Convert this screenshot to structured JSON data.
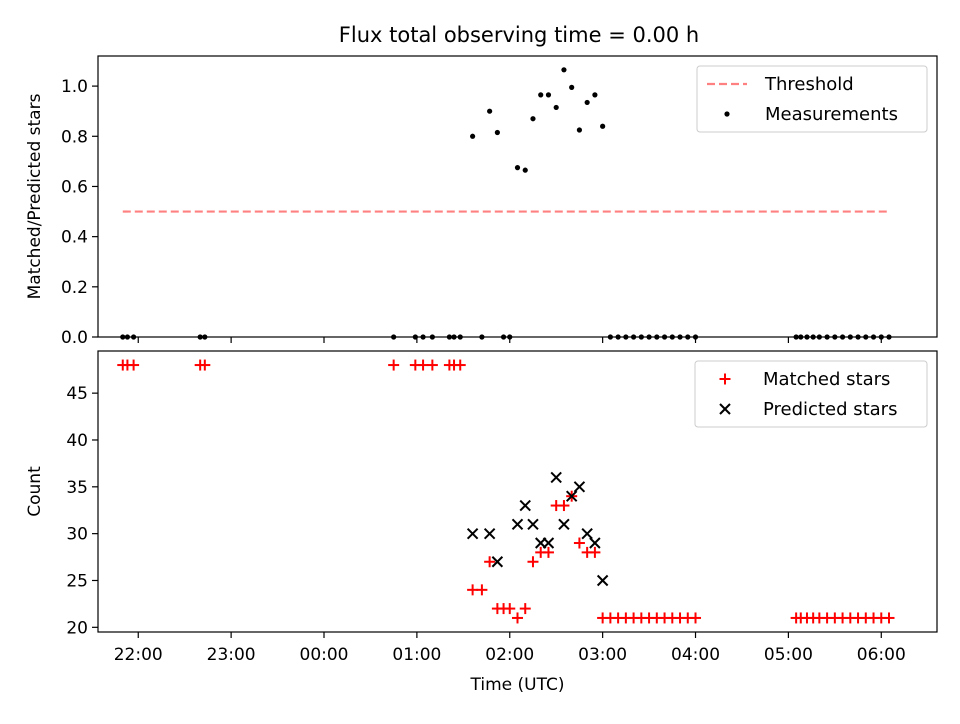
{
  "title": "Flux total observing time = 0.00 h",
  "chart_data": [
    {
      "type": "scatter",
      "ylabel": "Matched/Predicted stars",
      "xlabel": "",
      "xlim": [
        "21:34",
        "06:36"
      ],
      "ylim": [
        0,
        1.12
      ],
      "yticks": [
        0.0,
        0.2,
        0.4,
        0.6,
        0.8,
        1.0
      ],
      "ytick_labels": [
        "0.0",
        "0.2",
        "0.4",
        "0.6",
        "0.8",
        "1.0"
      ],
      "legend_position": "top-right",
      "series": [
        {
          "name": "Threshold",
          "kind": "line",
          "style": "dashed",
          "color": "#ff8080",
          "points": [
            [
              "21:50",
              0.5
            ],
            [
              "06:05",
              0.5
            ]
          ]
        },
        {
          "name": "Measurements",
          "kind": "scatter",
          "marker": "dot",
          "color": "#000000",
          "points": [
            [
              "21:50",
              0.0
            ],
            [
              "21:53",
              0.0
            ],
            [
              "21:57",
              0.0
            ],
            [
              "22:40",
              0.0
            ],
            [
              "22:43",
              0.0
            ],
            [
              "00:45",
              0.0
            ],
            [
              "00:59",
              0.0
            ],
            [
              "01:04",
              0.0
            ],
            [
              "01:10",
              0.0
            ],
            [
              "01:21",
              0.0
            ],
            [
              "01:24",
              0.0
            ],
            [
              "01:28",
              0.0
            ],
            [
              "01:42",
              0.0
            ],
            [
              "01:56",
              0.0
            ],
            [
              "02:00",
              0.0
            ],
            [
              "01:36",
              0.8
            ],
            [
              "01:47",
              0.9
            ],
            [
              "01:52",
              0.815
            ],
            [
              "02:05",
              0.675
            ],
            [
              "02:10",
              0.665
            ],
            [
              "02:15",
              0.87
            ],
            [
              "02:20",
              0.965
            ],
            [
              "02:25",
              0.965
            ],
            [
              "02:30",
              0.915
            ],
            [
              "02:35",
              1.065
            ],
            [
              "02:40",
              0.995
            ],
            [
              "02:45",
              0.825
            ],
            [
              "02:50",
              0.935
            ],
            [
              "02:55",
              0.965
            ],
            [
              "03:00",
              0.84
            ],
            [
              "03:05",
              0.0
            ],
            [
              "03:10",
              0.0
            ],
            [
              "03:15",
              0.0
            ],
            [
              "03:20",
              0.0
            ],
            [
              "03:25",
              0.0
            ],
            [
              "03:30",
              0.0
            ],
            [
              "03:35",
              0.0
            ],
            [
              "03:40",
              0.0
            ],
            [
              "03:45",
              0.0
            ],
            [
              "03:50",
              0.0
            ],
            [
              "03:55",
              0.0
            ],
            [
              "04:00",
              0.0
            ],
            [
              "05:05",
              0.0
            ],
            [
              "05:08",
              0.0
            ],
            [
              "05:12",
              0.0
            ],
            [
              "05:16",
              0.0
            ],
            [
              "05:20",
              0.0
            ],
            [
              "05:25",
              0.0
            ],
            [
              "05:30",
              0.0
            ],
            [
              "05:35",
              0.0
            ],
            [
              "05:40",
              0.0
            ],
            [
              "05:45",
              0.0
            ],
            [
              "05:50",
              0.0
            ],
            [
              "05:55",
              0.0
            ],
            [
              "06:00",
              0.0
            ],
            [
              "06:05",
              0.0
            ]
          ]
        }
      ]
    },
    {
      "type": "scatter",
      "ylabel": "Count",
      "xlabel": "Time (UTC)",
      "xlim": [
        "21:34",
        "06:36"
      ],
      "ylim": [
        19.5,
        49.5
      ],
      "yticks": [
        20,
        25,
        30,
        35,
        40,
        45
      ],
      "ytick_labels": [
        "20",
        "25",
        "30",
        "35",
        "40",
        "45"
      ],
      "xticks": [
        "22:00",
        "23:00",
        "00:00",
        "01:00",
        "02:00",
        "03:00",
        "04:00",
        "05:00",
        "06:00"
      ],
      "legend_position": "top-right",
      "series": [
        {
          "name": "Matched stars",
          "kind": "scatter",
          "marker": "plus",
          "color": "#ff0000",
          "points": [
            [
              "21:50",
              48
            ],
            [
              "21:53",
              48
            ],
            [
              "21:57",
              48
            ],
            [
              "22:40",
              48
            ],
            [
              "22:43",
              48
            ],
            [
              "00:45",
              48
            ],
            [
              "00:59",
              48
            ],
            [
              "01:04",
              48
            ],
            [
              "01:10",
              48
            ],
            [
              "01:21",
              48
            ],
            [
              "01:24",
              48
            ],
            [
              "01:28",
              48
            ],
            [
              "01:36",
              24
            ],
            [
              "01:42",
              24
            ],
            [
              "01:47",
              27
            ],
            [
              "01:52",
              22
            ],
            [
              "01:56",
              22
            ],
            [
              "02:00",
              22
            ],
            [
              "02:05",
              21
            ],
            [
              "02:10",
              22
            ],
            [
              "02:15",
              27
            ],
            [
              "02:20",
              28
            ],
            [
              "02:25",
              28
            ],
            [
              "02:30",
              33
            ],
            [
              "02:35",
              33
            ],
            [
              "02:40",
              34
            ],
            [
              "02:45",
              29
            ],
            [
              "02:50",
              28
            ],
            [
              "02:55",
              28
            ],
            [
              "03:00",
              21
            ],
            [
              "03:05",
              21
            ],
            [
              "03:10",
              21
            ],
            [
              "03:15",
              21
            ],
            [
              "03:20",
              21
            ],
            [
              "03:25",
              21
            ],
            [
              "03:30",
              21
            ],
            [
              "03:35",
              21
            ],
            [
              "03:40",
              21
            ],
            [
              "03:45",
              21
            ],
            [
              "03:50",
              21
            ],
            [
              "03:55",
              21
            ],
            [
              "04:00",
              21
            ],
            [
              "05:05",
              21
            ],
            [
              "05:08",
              21
            ],
            [
              "05:12",
              21
            ],
            [
              "05:16",
              21
            ],
            [
              "05:20",
              21
            ],
            [
              "05:25",
              21
            ],
            [
              "05:30",
              21
            ],
            [
              "05:35",
              21
            ],
            [
              "05:40",
              21
            ],
            [
              "05:45",
              21
            ],
            [
              "05:50",
              21
            ],
            [
              "05:55",
              21
            ],
            [
              "06:00",
              21
            ],
            [
              "06:05",
              21
            ]
          ]
        },
        {
          "name": "Predicted stars",
          "kind": "scatter",
          "marker": "x",
          "color": "#000000",
          "points": [
            [
              "01:36",
              30
            ],
            [
              "01:47",
              30
            ],
            [
              "01:52",
              27
            ],
            [
              "02:05",
              31
            ],
            [
              "02:10",
              33
            ],
            [
              "02:15",
              31
            ],
            [
              "02:20",
              29
            ],
            [
              "02:25",
              29
            ],
            [
              "02:30",
              36
            ],
            [
              "02:35",
              31
            ],
            [
              "02:40",
              34
            ],
            [
              "02:45",
              35
            ],
            [
              "02:50",
              30
            ],
            [
              "02:55",
              29
            ],
            [
              "03:00",
              25
            ]
          ]
        }
      ]
    }
  ]
}
